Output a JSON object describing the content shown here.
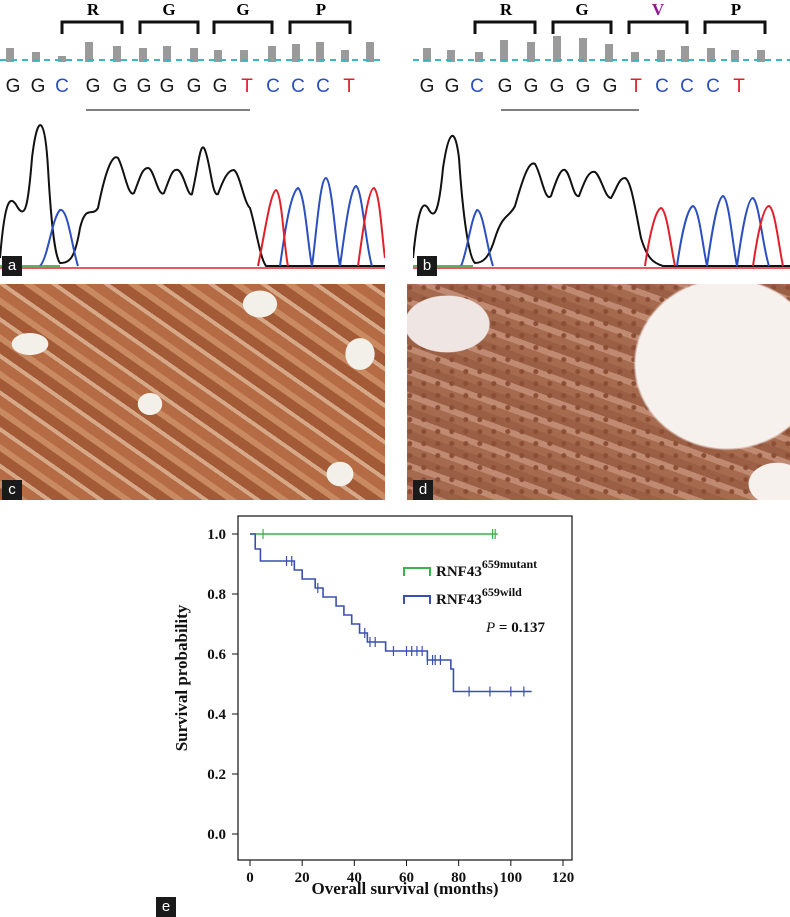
{
  "panel_a": {
    "label": "a",
    "codons": [
      "R",
      "G",
      "G",
      "P"
    ],
    "bases": [
      "G",
      "G",
      "C",
      "G",
      "G",
      "G",
      "G",
      "G",
      "G",
      "T",
      "C",
      "C",
      "C",
      "T"
    ]
  },
  "panel_b": {
    "label": "b",
    "codons": [
      "R",
      "G",
      "V",
      "P"
    ],
    "bases": [
      "G",
      "G",
      "C",
      "G",
      "G",
      "G",
      "G",
      "G",
      "T",
      "C",
      "C",
      "C",
      "T"
    ]
  },
  "panel_c": {
    "label": "c"
  },
  "panel_d": {
    "label": "d"
  },
  "panel_e": {
    "label": "e"
  },
  "colors": {
    "G": "#1a1a1a",
    "C": "#2b4fbf",
    "T": "#e0202a",
    "A": "#2a9a2a",
    "mutant_codon": "#8b1a8b",
    "mutant_line": "#3cb34a",
    "wild_line": "#3a4fb0",
    "dashed": "#38b8c0"
  },
  "chart_data": {
    "type": "line",
    "title": "",
    "xlabel": "Overall survival (months)",
    "ylabel": "Survival probability",
    "xlim": [
      0,
      120
    ],
    "ylim": [
      0,
      1
    ],
    "xticks": [
      0,
      20,
      40,
      60,
      80,
      100,
      120
    ],
    "yticks": [
      "0.0",
      "0.2",
      "0.4",
      "0.6",
      "0.8",
      "1.0"
    ],
    "pvalue_label": "P",
    "pvalue_text": " = 0.137",
    "legend_placement": "top-right",
    "series": [
      {
        "name_base": "RNF43",
        "name_sup": "659mutant",
        "steps": [
          [
            0,
            1.0
          ],
          [
            95,
            1.0
          ]
        ],
        "censor": [
          5,
          93,
          94
        ]
      },
      {
        "name_base": "RNF43",
        "name_sup": "659wild",
        "steps": [
          [
            0,
            1.0
          ],
          [
            2,
            0.95
          ],
          [
            4,
            0.91
          ],
          [
            16,
            0.91
          ],
          [
            17,
            0.88
          ],
          [
            20,
            0.85
          ],
          [
            25,
            0.82
          ],
          [
            28,
            0.79
          ],
          [
            33,
            0.76
          ],
          [
            36,
            0.73
          ],
          [
            39,
            0.7
          ],
          [
            42,
            0.67
          ],
          [
            45,
            0.64
          ],
          [
            52,
            0.61
          ],
          [
            68,
            0.58
          ],
          [
            77,
            0.55
          ],
          [
            78,
            0.475
          ],
          [
            108,
            0.475
          ]
        ],
        "censor": [
          14,
          16,
          26,
          44,
          46,
          48,
          55,
          60,
          62,
          64,
          66,
          68,
          70,
          71,
          73,
          84,
          92,
          100,
          105
        ]
      }
    ]
  }
}
